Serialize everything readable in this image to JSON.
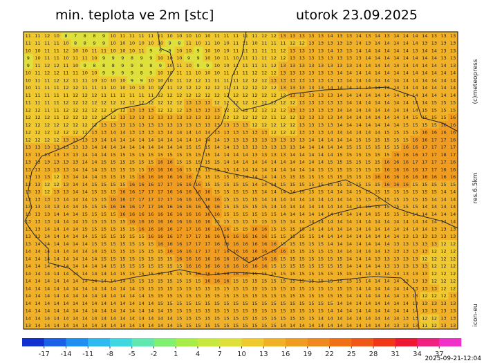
{
  "title": "min. teplota ve 2m [stc]",
  "date": "utorok 23.09.2025",
  "credits": "(c)meteopress",
  "resolution": "res.6.5km",
  "model": "icon-eu",
  "timestamp": "2025-09-21-12:04",
  "colorbar": {
    "lim": [
      -20,
      40
    ],
    "ticks": [
      -17,
      -14,
      -11,
      -8,
      -5,
      -2,
      1,
      4,
      7,
      10,
      13,
      16,
      19,
      22,
      25,
      28,
      31,
      34,
      37
    ],
    "colors": [
      "#1030d0",
      "#1a60e8",
      "#2090f0",
      "#30b8f0",
      "#40d8e0",
      "#60e8b0",
      "#80f070",
      "#a8ec48",
      "#c8e840",
      "#e0e03c",
      "#f0c830",
      "#f0b028",
      "#f09c20",
      "#f08820",
      "#f07018",
      "#f05818",
      "#f03818",
      "#f01830",
      "#f02080",
      "#f030c8"
    ]
  },
  "grid": [
    [
      11,
      11,
      12,
      10,
      8,
      7,
      8,
      8,
      9,
      10,
      11,
      11,
      11,
      11,
      11,
      10,
      10,
      10,
      10,
      10,
      11,
      11,
      11,
      11,
      11,
      12,
      12,
      13,
      13,
      13,
      13,
      13,
      14,
      13,
      13,
      14,
      13,
      14,
      13,
      14,
      14,
      14,
      14,
      13,
      13,
      13
    ],
    [
      11,
      11,
      11,
      11,
      10,
      8,
      8,
      9,
      9,
      10,
      10,
      10,
      10,
      10,
      10,
      9,
      8,
      11,
      10,
      11,
      10,
      10,
      11,
      11,
      10,
      11,
      11,
      11,
      12,
      12,
      13,
      13,
      13,
      13,
      13,
      14,
      13,
      14,
      14,
      14,
      14,
      14,
      13,
      13,
      13,
      13
    ],
    [
      10,
      10,
      11,
      11,
      12,
      10,
      10,
      11,
      11,
      10,
      10,
      10,
      11,
      9,
      9,
      9,
      10,
      10,
      9,
      10,
      10,
      10,
      11,
      11,
      11,
      11,
      11,
      12,
      13,
      13,
      13,
      13,
      14,
      13,
      13,
      14,
      14,
      14,
      14,
      14,
      14,
      13,
      14,
      14,
      13,
      13
    ],
    [
      9,
      10,
      11,
      11,
      10,
      11,
      11,
      10,
      9,
      9,
      9,
      8,
      9,
      9,
      10,
      10,
      10,
      9,
      9,
      10,
      10,
      11,
      10,
      11,
      11,
      11,
      12,
      12,
      13,
      13,
      13,
      13,
      13,
      13,
      13,
      13,
      14,
      14,
      14,
      14,
      14,
      14,
      14,
      14,
      13,
      13
    ],
    [
      9,
      11,
      12,
      12,
      11,
      10,
      9,
      8,
      8,
      8,
      9,
      9,
      8,
      8,
      9,
      10,
      11,
      10,
      9,
      9,
      10,
      10,
      11,
      11,
      11,
      11,
      12,
      13,
      13,
      13,
      13,
      13,
      13,
      13,
      13,
      14,
      14,
      14,
      14,
      14,
      14,
      14,
      14,
      14,
      14,
      13
    ],
    [
      10,
      11,
      12,
      12,
      11,
      11,
      10,
      10,
      9,
      9,
      9,
      9,
      8,
      9,
      10,
      10,
      11,
      11,
      10,
      10,
      10,
      11,
      11,
      11,
      12,
      12,
      12,
      13,
      13,
      13,
      13,
      13,
      13,
      14,
      14,
      14,
      14,
      14,
      14,
      14,
      14,
      14,
      14,
      14,
      14,
      14
    ],
    [
      10,
      11,
      11,
      12,
      12,
      11,
      11,
      10,
      10,
      10,
      10,
      9,
      9,
      10,
      10,
      10,
      11,
      12,
      12,
      11,
      11,
      11,
      11,
      12,
      12,
      12,
      13,
      13,
      13,
      13,
      13,
      13,
      13,
      13,
      14,
      14,
      14,
      14,
      14,
      14,
      14,
      14,
      14,
      14,
      14,
      14
    ],
    [
      10,
      11,
      11,
      11,
      12,
      12,
      11,
      11,
      11,
      10,
      10,
      10,
      10,
      10,
      10,
      11,
      12,
      12,
      12,
      12,
      12,
      11,
      11,
      12,
      12,
      12,
      12,
      13,
      13,
      13,
      13,
      13,
      14,
      14,
      14,
      14,
      14,
      14,
      14,
      14,
      14,
      14,
      14,
      14,
      14,
      14
    ],
    [
      11,
      11,
      11,
      11,
      11,
      12,
      12,
      12,
      11,
      11,
      11,
      11,
      11,
      11,
      12,
      12,
      12,
      12,
      12,
      12,
      12,
      12,
      12,
      12,
      12,
      12,
      12,
      12,
      13,
      13,
      13,
      13,
      13,
      14,
      14,
      14,
      14,
      14,
      14,
      14,
      14,
      14,
      14,
      14,
      14,
      14
    ],
    [
      11,
      11,
      11,
      11,
      12,
      12,
      12,
      12,
      12,
      12,
      12,
      12,
      12,
      12,
      12,
      12,
      12,
      13,
      13,
      13,
      12,
      12,
      12,
      12,
      12,
      12,
      12,
      12,
      12,
      13,
      13,
      13,
      13,
      13,
      14,
      14,
      14,
      14,
      14,
      14,
      14,
      14,
      14,
      15,
      15,
      15
    ],
    [
      12,
      12,
      11,
      11,
      12,
      12,
      12,
      12,
      12,
      12,
      12,
      13,
      13,
      13,
      12,
      12,
      12,
      13,
      13,
      13,
      13,
      12,
      12,
      12,
      12,
      12,
      12,
      12,
      13,
      13,
      13,
      13,
      13,
      14,
      14,
      14,
      14,
      14,
      14,
      14,
      14,
      14,
      15,
      15,
      15,
      15
    ],
    [
      12,
      12,
      12,
      11,
      12,
      12,
      12,
      12,
      12,
      12,
      13,
      13,
      13,
      13,
      13,
      13,
      13,
      13,
      13,
      13,
      13,
      12,
      12,
      12,
      12,
      12,
      11,
      12,
      12,
      13,
      13,
      13,
      13,
      14,
      14,
      14,
      14,
      14,
      14,
      14,
      14,
      15,
      15,
      15,
      15,
      16
    ],
    [
      12,
      12,
      12,
      12,
      12,
      12,
      12,
      12,
      13,
      13,
      13,
      13,
      13,
      13,
      13,
      13,
      13,
      13,
      13,
      13,
      13,
      13,
      13,
      13,
      12,
      12,
      12,
      12,
      12,
      13,
      13,
      13,
      13,
      14,
      14,
      14,
      14,
      14,
      14,
      14,
      15,
      15,
      15,
      15,
      16,
      16
    ],
    [
      12,
      12,
      12,
      12,
      12,
      12,
      12,
      13,
      13,
      14,
      14,
      13,
      13,
      13,
      13,
      14,
      14,
      14,
      14,
      14,
      13,
      13,
      13,
      13,
      13,
      13,
      12,
      12,
      12,
      13,
      13,
      13,
      14,
      14,
      14,
      14,
      14,
      14,
      15,
      15,
      15,
      15,
      16,
      16,
      16,
      16
    ],
    [
      12,
      12,
      12,
      12,
      13,
      13,
      13,
      13,
      14,
      14,
      14,
      14,
      14,
      14,
      14,
      14,
      14,
      14,
      14,
      14,
      14,
      13,
      13,
      13,
      13,
      13,
      13,
      13,
      13,
      13,
      14,
      14,
      14,
      14,
      14,
      15,
      15,
      15,
      15,
      15,
      15,
      16,
      16,
      17,
      17,
      16
    ],
    [
      13,
      13,
      13,
      13,
      13,
      13,
      13,
      14,
      14,
      14,
      14,
      14,
      14,
      14,
      14,
      14,
      14,
      15,
      15,
      15,
      14,
      14,
      13,
      13,
      13,
      13,
      13,
      13,
      13,
      14,
      14,
      14,
      14,
      14,
      15,
      15,
      15,
      15,
      15,
      15,
      16,
      16,
      17,
      17,
      17,
      17
    ],
    [
      13,
      13,
      13,
      13,
      13,
      13,
      14,
      14,
      14,
      15,
      15,
      15,
      15,
      15,
      15,
      15,
      15,
      15,
      15,
      15,
      14,
      14,
      14,
      14,
      13,
      13,
      13,
      13,
      14,
      14,
      14,
      14,
      14,
      15,
      15,
      15,
      15,
      15,
      15,
      16,
      16,
      16,
      17,
      17,
      18,
      17
    ],
    [
      13,
      13,
      13,
      13,
      13,
      13,
      14,
      14,
      15,
      15,
      15,
      15,
      15,
      15,
      16,
      16,
      15,
      15,
      15,
      15,
      15,
      14,
      14,
      14,
      14,
      14,
      14,
      14,
      14,
      14,
      14,
      14,
      15,
      15,
      15,
      15,
      15,
      15,
      16,
      16,
      16,
      17,
      17,
      17,
      17,
      16
    ],
    [
      13,
      13,
      13,
      13,
      13,
      14,
      14,
      14,
      15,
      15,
      15,
      15,
      15,
      16,
      16,
      16,
      16,
      15,
      15,
      15,
      15,
      15,
      14,
      14,
      14,
      14,
      14,
      14,
      14,
      14,
      14,
      15,
      15,
      15,
      15,
      15,
      15,
      15,
      16,
      16,
      16,
      16,
      17,
      17,
      16,
      16
    ],
    [
      13,
      13,
      13,
      12,
      13,
      14,
      14,
      14,
      15,
      15,
      15,
      15,
      16,
      16,
      16,
      16,
      16,
      16,
      15,
      15,
      15,
      15,
      15,
      14,
      14,
      14,
      14,
      15,
      15,
      15,
      15,
      15,
      15,
      15,
      15,
      15,
      15,
      16,
      16,
      16,
      16,
      16,
      16,
      16,
      16,
      16
    ],
    [
      13,
      13,
      12,
      12,
      13,
      14,
      14,
      15,
      15,
      15,
      15,
      16,
      16,
      16,
      17,
      17,
      16,
      16,
      16,
      15,
      15,
      15,
      15,
      15,
      14,
      14,
      14,
      15,
      15,
      15,
      15,
      15,
      15,
      15,
      15,
      15,
      15,
      15,
      16,
      16,
      16,
      15,
      15,
      15,
      15,
      15
    ],
    [
      13,
      13,
      12,
      13,
      13,
      14,
      14,
      15,
      15,
      15,
      16,
      16,
      17,
      17,
      17,
      16,
      16,
      16,
      16,
      16,
      15,
      15,
      15,
      15,
      15,
      14,
      14,
      14,
      14,
      15,
      15,
      15,
      14,
      14,
      14,
      15,
      15,
      15,
      15,
      15,
      15,
      15,
      15,
      15,
      14,
      14
    ],
    [
      13,
      13,
      13,
      13,
      14,
      14,
      14,
      15,
      15,
      16,
      16,
      17,
      17,
      17,
      17,
      17,
      16,
      16,
      16,
      16,
      16,
      15,
      15,
      15,
      15,
      14,
      14,
      14,
      14,
      14,
      14,
      14,
      14,
      14,
      14,
      15,
      15,
      15,
      15,
      15,
      15,
      15,
      15,
      14,
      14,
      14
    ],
    [
      13,
      13,
      13,
      13,
      14,
      14,
      15,
      15,
      15,
      16,
      16,
      16,
      17,
      17,
      16,
      16,
      16,
      16,
      16,
      16,
      16,
      15,
      15,
      15,
      15,
      15,
      14,
      14,
      14,
      14,
      14,
      14,
      14,
      14,
      14,
      14,
      15,
      15,
      15,
      15,
      15,
      15,
      14,
      14,
      14,
      14
    ],
    [
      13,
      13,
      13,
      14,
      14,
      14,
      15,
      15,
      15,
      15,
      16,
      16,
      16,
      16,
      16,
      16,
      16,
      16,
      16,
      16,
      16,
      15,
      15,
      15,
      15,
      15,
      15,
      14,
      14,
      14,
      14,
      14,
      14,
      14,
      14,
      14,
      14,
      15,
      15,
      15,
      15,
      14,
      14,
      14,
      14,
      14
    ],
    [
      13,
      13,
      13,
      14,
      14,
      14,
      15,
      15,
      15,
      15,
      15,
      16,
      16,
      16,
      16,
      16,
      16,
      16,
      16,
      16,
      15,
      15,
      15,
      15,
      15,
      15,
      15,
      15,
      14,
      14,
      14,
      14,
      14,
      14,
      14,
      14,
      14,
      14,
      14,
      14,
      14,
      14,
      14,
      14,
      14,
      14
    ],
    [
      13,
      13,
      14,
      14,
      14,
      14,
      15,
      15,
      15,
      15,
      15,
      15,
      16,
      16,
      16,
      16,
      17,
      17,
      16,
      16,
      16,
      16,
      15,
      15,
      16,
      16,
      15,
      15,
      15,
      15,
      14,
      14,
      14,
      14,
      14,
      14,
      14,
      14,
      14,
      14,
      14,
      14,
      14,
      13,
      13,
      13
    ],
    [
      13,
      13,
      14,
      14,
      14,
      14,
      14,
      15,
      15,
      15,
      15,
      15,
      15,
      16,
      16,
      16,
      17,
      17,
      17,
      16,
      16,
      16,
      16,
      16,
      16,
      16,
      15,
      15,
      15,
      15,
      15,
      14,
      14,
      14,
      14,
      14,
      14,
      14,
      14,
      14,
      13,
      13,
      13,
      13,
      13,
      13
    ],
    [
      13,
      14,
      14,
      14,
      14,
      14,
      14,
      15,
      15,
      15,
      15,
      15,
      15,
      15,
      16,
      16,
      16,
      17,
      17,
      17,
      16,
      16,
      16,
      16,
      16,
      16,
      16,
      15,
      15,
      15,
      15,
      15,
      14,
      14,
      14,
      14,
      14,
      14,
      14,
      13,
      13,
      13,
      13,
      13,
      12,
      12
    ],
    [
      14,
      14,
      14,
      14,
      14,
      14,
      14,
      14,
      15,
      15,
      15,
      15,
      15,
      15,
      15,
      16,
      16,
      16,
      17,
      17,
      17,
      16,
      16,
      16,
      16,
      16,
      16,
      16,
      15,
      15,
      15,
      15,
      15,
      14,
      14,
      14,
      14,
      14,
      13,
      13,
      13,
      13,
      13,
      12,
      12,
      12
    ],
    [
      14,
      14,
      14,
      14,
      14,
      14,
      14,
      14,
      15,
      15,
      15,
      15,
      15,
      15,
      15,
      15,
      16,
      16,
      16,
      16,
      16,
      16,
      16,
      16,
      16,
      16,
      16,
      15,
      15,
      15,
      15,
      15,
      15,
      15,
      14,
      14,
      14,
      13,
      13,
      13,
      13,
      13,
      12,
      12,
      12,
      12
    ],
    [
      14,
      14,
      14,
      14,
      14,
      14,
      14,
      14,
      14,
      15,
      15,
      15,
      15,
      15,
      15,
      15,
      15,
      16,
      16,
      16,
      16,
      16,
      16,
      16,
      16,
      16,
      15,
      15,
      15,
      15,
      15,
      15,
      15,
      15,
      14,
      14,
      14,
      14,
      13,
      13,
      13,
      13,
      13,
      12,
      12,
      12
    ],
    [
      14,
      14,
      14,
      14,
      14,
      14,
      14,
      14,
      14,
      14,
      15,
      15,
      15,
      15,
      15,
      15,
      15,
      15,
      16,
      16,
      16,
      16,
      16,
      16,
      15,
      15,
      15,
      15,
      15,
      15,
      15,
      15,
      15,
      15,
      15,
      14,
      14,
      14,
      14,
      13,
      13,
      13,
      13,
      12,
      12,
      12
    ],
    [
      14,
      14,
      14,
      14,
      14,
      14,
      14,
      14,
      14,
      14,
      14,
      15,
      15,
      15,
      15,
      15,
      15,
      15,
      15,
      16,
      16,
      16,
      15,
      15,
      15,
      15,
      15,
      15,
      15,
      15,
      15,
      15,
      15,
      15,
      15,
      15,
      14,
      14,
      14,
      14,
      13,
      13,
      13,
      12,
      12,
      12
    ],
    [
      14,
      14,
      14,
      14,
      14,
      14,
      14,
      14,
      14,
      14,
      14,
      14,
      15,
      15,
      15,
      15,
      15,
      15,
      15,
      15,
      15,
      15,
      15,
      15,
      15,
      15,
      15,
      15,
      15,
      15,
      15,
      15,
      15,
      15,
      15,
      14,
      14,
      14,
      14,
      14,
      14,
      13,
      13,
      13,
      12,
      12
    ],
    [
      14,
      14,
      14,
      14,
      14,
      14,
      14,
      14,
      14,
      14,
      14,
      14,
      14,
      15,
      15,
      15,
      15,
      15,
      15,
      15,
      15,
      15,
      15,
      15,
      15,
      15,
      15,
      15,
      15,
      15,
      15,
      15,
      15,
      15,
      14,
      14,
      14,
      14,
      14,
      14,
      13,
      13,
      12,
      12,
      12,
      13
    ],
    [
      14,
      14,
      14,
      14,
      14,
      14,
      14,
      14,
      14,
      14,
      14,
      14,
      14,
      14,
      15,
      15,
      15,
      15,
      15,
      15,
      15,
      15,
      15,
      15,
      15,
      15,
      15,
      15,
      15,
      15,
      15,
      15,
      15,
      14,
      14,
      14,
      14,
      14,
      14,
      14,
      14,
      13,
      13,
      13,
      13,
      13
    ],
    [
      14,
      14,
      14,
      14,
      14,
      14,
      14,
      14,
      14,
      14,
      14,
      14,
      14,
      14,
      14,
      15,
      15,
      15,
      15,
      15,
      15,
      15,
      15,
      15,
      15,
      15,
      15,
      15,
      15,
      15,
      15,
      15,
      14,
      14,
      14,
      14,
      14,
      14,
      14,
      14,
      14,
      14,
      13,
      13,
      13,
      13
    ],
    [
      14,
      14,
      14,
      14,
      14,
      14,
      14,
      14,
      14,
      14,
      14,
      14,
      14,
      14,
      14,
      14,
      15,
      15,
      15,
      15,
      15,
      15,
      15,
      15,
      15,
      15,
      15,
      15,
      15,
      15,
      15,
      14,
      14,
      14,
      14,
      14,
      14,
      14,
      14,
      14,
      13,
      13,
      12,
      12,
      13,
      13
    ],
    [
      13,
      14,
      14,
      14,
      14,
      14,
      14,
      14,
      14,
      14,
      14,
      14,
      14,
      14,
      14,
      14,
      15,
      15,
      15,
      15,
      15,
      15,
      15,
      15,
      15,
      15,
      15,
      14,
      14,
      14,
      14,
      14,
      14,
      14,
      14,
      14,
      14,
      14,
      14,
      13,
      13,
      13,
      11,
      12,
      13,
      13
    ]
  ]
}
